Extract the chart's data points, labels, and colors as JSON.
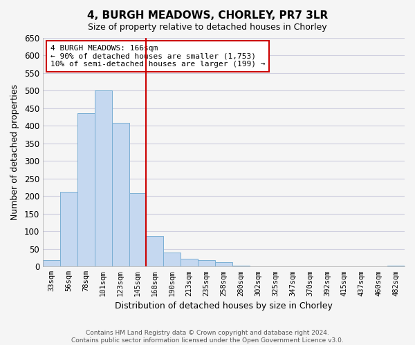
{
  "title": "4, BURGH MEADOWS, CHORLEY, PR7 3LR",
  "subtitle": "Size of property relative to detached houses in Chorley",
  "xlabel": "Distribution of detached houses by size in Chorley",
  "ylabel": "Number of detached properties",
  "bar_labels": [
    "33sqm",
    "56sqm",
    "78sqm",
    "101sqm",
    "123sqm",
    "145sqm",
    "168sqm",
    "190sqm",
    "213sqm",
    "235sqm",
    "258sqm",
    "280sqm",
    "302sqm",
    "325sqm",
    "347sqm",
    "370sqm",
    "392sqm",
    "415sqm",
    "437sqm",
    "460sqm",
    "482sqm"
  ],
  "bar_values": [
    18,
    212,
    437,
    500,
    408,
    209,
    87,
    40,
    23,
    19,
    12,
    3,
    0,
    0,
    0,
    0,
    0,
    0,
    0,
    0,
    3
  ],
  "bar_color": "#c5d8f0",
  "bar_edge_color": "#7aafd4",
  "property_line_index": 6,
  "property_line_color": "#cc0000",
  "annotation_line1": "4 BURGH MEADOWS: 166sqm",
  "annotation_line2": "← 90% of detached houses are smaller (1,753)",
  "annotation_line3": "10% of semi-detached houses are larger (199) →",
  "annotation_box_color": "#ffffff",
  "annotation_box_edge_color": "#cc0000",
  "ylim": [
    0,
    650
  ],
  "yticks": [
    0,
    50,
    100,
    150,
    200,
    250,
    300,
    350,
    400,
    450,
    500,
    550,
    600,
    650
  ],
  "footer_line1": "Contains HM Land Registry data © Crown copyright and database right 2024.",
  "footer_line2": "Contains public sector information licensed under the Open Government Licence v3.0.",
  "bg_color": "#f5f5f5",
  "grid_color": "#d0d0e0"
}
